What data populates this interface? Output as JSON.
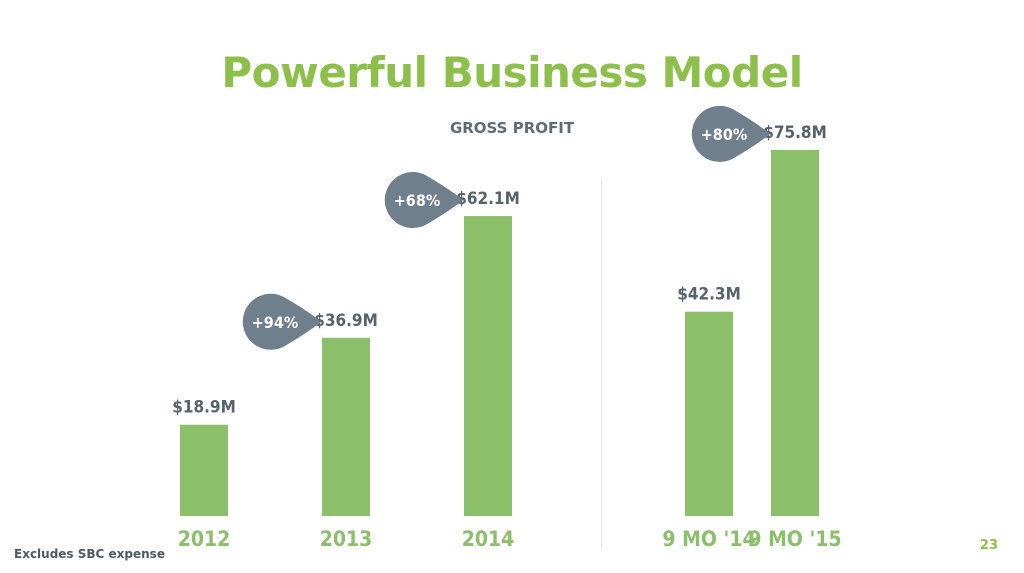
{
  "slide": {
    "title": "Powerful Business Model",
    "footnote": "Excludes SBC expense",
    "page_number": "23"
  },
  "colors": {
    "bar": "#8bbf6a",
    "title": "#8cc04b",
    "value_label": "#56626c",
    "badge": "#6f7f8c",
    "badge_text": "#ffffff"
  },
  "chart_data": {
    "type": "bar",
    "title": "GROSS PROFIT",
    "xlabel": "",
    "ylabel": "",
    "ylim": [
      0,
      80
    ],
    "unit": "$M",
    "groups": [
      {
        "name": "annual",
        "categories": [
          "2012",
          "2013",
          "2014"
        ],
        "values": [
          18.9,
          36.9,
          62.1
        ],
        "labels": [
          "$18.9M",
          "$36.9M",
          "$62.1M"
        ],
        "growth": [
          null,
          "+94%",
          "+68%"
        ]
      },
      {
        "name": "nine-month",
        "categories": [
          "9 MO '14",
          "9 MO '15"
        ],
        "values": [
          42.3,
          75.8
        ],
        "labels": [
          "$42.3M",
          "$75.8M"
        ],
        "growth": [
          null,
          "+80%"
        ]
      }
    ]
  }
}
